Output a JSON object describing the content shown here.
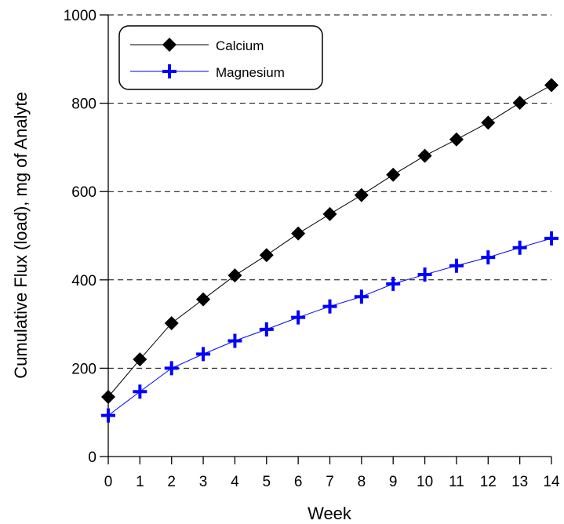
{
  "chart_data": {
    "type": "line",
    "title": "",
    "xlabel": "Week",
    "ylabel": "Cumulative Flux (load), mg of Analyte",
    "xlim": [
      0,
      14
    ],
    "ylim": [
      0,
      1000
    ],
    "x_ticks": [
      "0",
      "1",
      "2",
      "3",
      "4",
      "5",
      "6",
      "7",
      "8",
      "9",
      "10",
      "11",
      "12",
      "13",
      "14"
    ],
    "y_ticks": [
      "0",
      "200",
      "400",
      "600",
      "800",
      "1000"
    ],
    "grid": "horizontal dashed",
    "legend_position": "top-left",
    "x": [
      0,
      1,
      2,
      3,
      4,
      5,
      6,
      7,
      8,
      9,
      10,
      11,
      12,
      13,
      14
    ],
    "series": [
      {
        "name": "Calcium",
        "color": "#000000",
        "marker": "diamond",
        "values": [
          135,
          220,
          302,
          356,
          410,
          456,
          505,
          549,
          592,
          638,
          681,
          718,
          756,
          801,
          841
        ]
      },
      {
        "name": "Magnesium",
        "color": "#0000ff",
        "marker": "plus",
        "values": [
          93,
          147,
          200,
          232,
          262,
          288,
          315,
          340,
          362,
          391,
          412,
          432,
          451,
          473,
          494
        ]
      }
    ]
  }
}
